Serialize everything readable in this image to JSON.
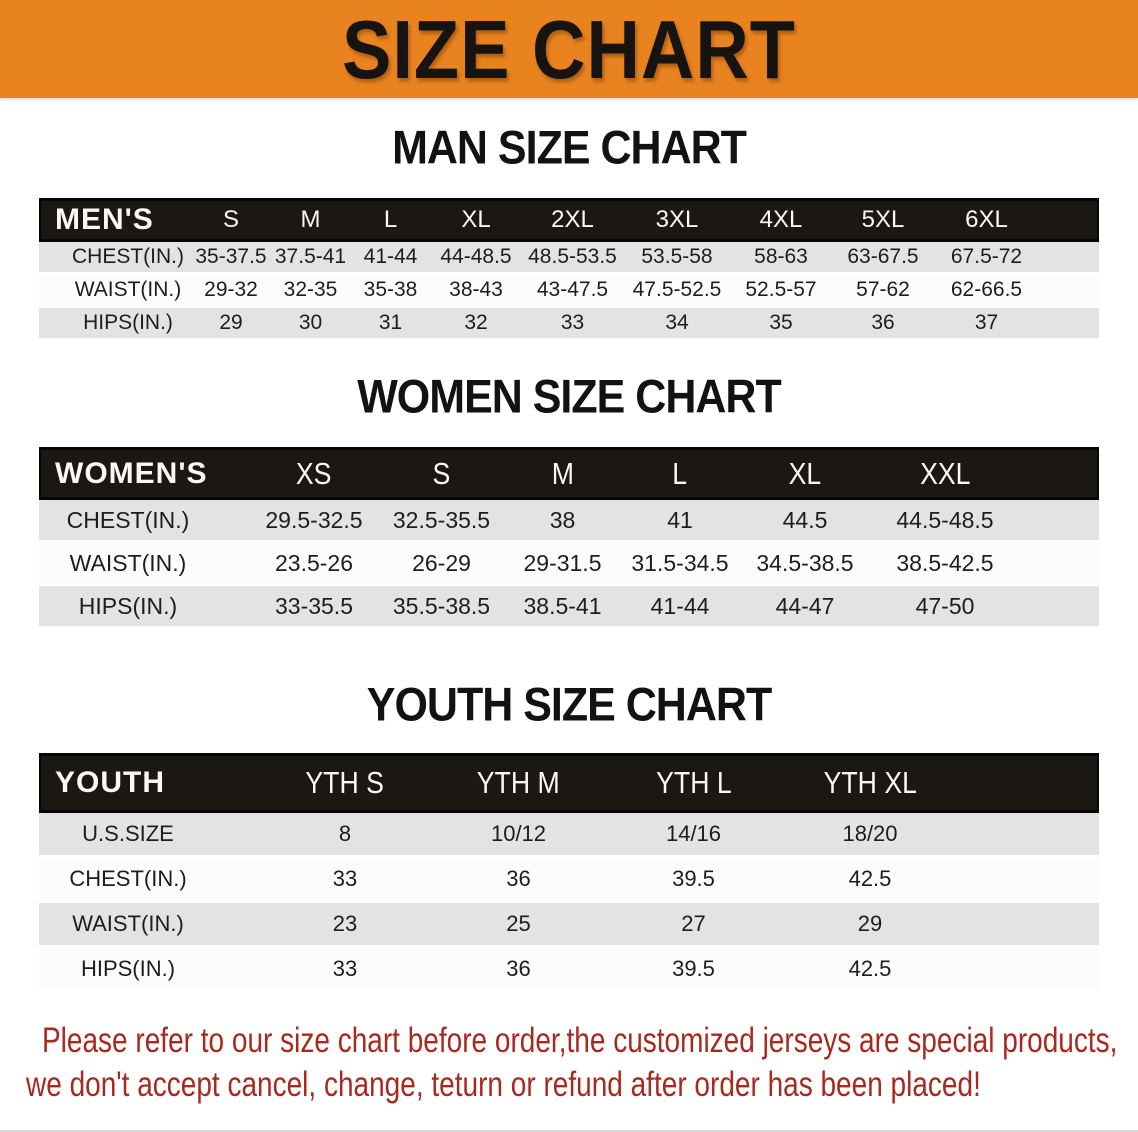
{
  "colors": {
    "banner_bg": "#E8831F",
    "header_band": "#1B1713",
    "row_shade": "#E3E3E3",
    "disclaimer_red": "#A9291F"
  },
  "banner": {
    "title": "SIZE CHART"
  },
  "sections": [
    {
      "heading": "MAN SIZE CHART",
      "table": {
        "label": "MEN'S",
        "columns": [
          "S",
          "M",
          "L",
          "XL",
          "2XL",
          "3XL",
          "4XL",
          "5XL",
          "6XL"
        ],
        "rows": [
          {
            "label": "CHEST(IN.)",
            "values": [
              "35-37.5",
              "37.5-41",
              "41-44",
              "44-48.5",
              "48.5-53.5",
              "53.5-58",
              "58-63",
              "63-67.5",
              "67.5-72"
            ]
          },
          {
            "label": "WAIST(IN.)",
            "values": [
              "29-32",
              "32-35",
              "35-38",
              "38-43",
              "43-47.5",
              "47.5-52.5",
              "52.5-57",
              "57-62",
              "62-66.5"
            ]
          },
          {
            "label": "HIPS(IN.)",
            "values": [
              "29",
              "30",
              "31",
              "32",
              "33",
              "34",
              "35",
              "36",
              "37"
            ]
          }
        ]
      }
    },
    {
      "heading": "WOMEN SIZE CHART",
      "table": {
        "label": "WOMEN'S",
        "columns": [
          "XS",
          "S",
          "M",
          "L",
          "XL",
          "XXL"
        ],
        "rows": [
          {
            "label": "CHEST(IN.)",
            "values": [
              "29.5-32.5",
              "32.5-35.5",
              "38",
              "41",
              "44.5",
              "44.5-48.5"
            ]
          },
          {
            "label": "WAIST(IN.)",
            "values": [
              "23.5-26",
              "26-29",
              "29-31.5",
              "31.5-34.5",
              "34.5-38.5",
              "38.5-42.5"
            ]
          },
          {
            "label": "HIPS(IN.)",
            "values": [
              "33-35.5",
              "35.5-38.5",
              "38.5-41",
              "41-44",
              "44-47",
              "47-50"
            ]
          }
        ]
      }
    },
    {
      "heading": "YOUTH SIZE CHART",
      "table": {
        "label": "YOUTH",
        "columns": [
          "YTH S",
          "YTH M",
          "YTH L",
          "YTH XL"
        ],
        "rows": [
          {
            "label": "U.S.SIZE",
            "values": [
              "8",
              "10/12",
              "14/16",
              "18/20"
            ]
          },
          {
            "label": "CHEST(IN.)",
            "values": [
              "33",
              "36",
              "39.5",
              "42.5"
            ]
          },
          {
            "label": "WAIST(IN.)",
            "values": [
              "23",
              "25",
              "27",
              "29"
            ]
          },
          {
            "label": "HIPS(IN.)",
            "values": [
              "33",
              "36",
              "39.5",
              "42.5"
            ]
          }
        ]
      }
    }
  ],
  "disclaimer": {
    "line1": "Please refer to our size chart before order,the customized jerseys are special products,",
    "line2": "we don't accept cancel, change, teturn or refund after order has been placed!"
  }
}
